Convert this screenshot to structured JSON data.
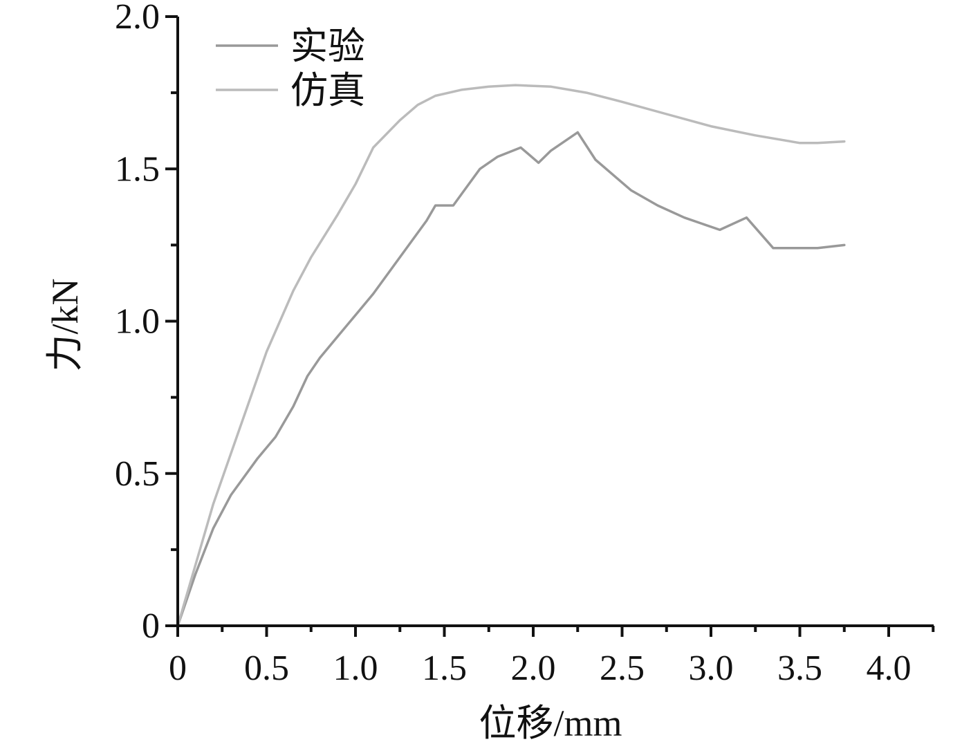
{
  "chart_data": {
    "type": "line",
    "xlabel": "位移/mm",
    "ylabel": "力/kN",
    "xlim": [
      0,
      4.25
    ],
    "ylim": [
      0,
      2.0
    ],
    "x_ticks": [
      0,
      0.5,
      1.0,
      1.5,
      2.0,
      2.5,
      3.0,
      3.5,
      4.0
    ],
    "x_tick_labels": [
      "0",
      "0.5",
      "1.0",
      "1.5",
      "2.0",
      "2.5",
      "3.0",
      "3.5",
      "4.0"
    ],
    "y_ticks": [
      0,
      0.5,
      1.0,
      1.5,
      2.0
    ],
    "y_tick_labels": [
      "0",
      "0.5",
      "1.0",
      "1.5",
      "2.0"
    ],
    "grid": false,
    "legend": {
      "position": "top-left"
    },
    "series": [
      {
        "name": "实验",
        "color": "#999999",
        "x": [
          0,
          0.1,
          0.2,
          0.3,
          0.45,
          0.55,
          0.65,
          0.73,
          0.8,
          0.9,
          1.0,
          1.1,
          1.2,
          1.3,
          1.4,
          1.45,
          1.55,
          1.6,
          1.7,
          1.8,
          1.93,
          2.03,
          2.1,
          2.25,
          2.35,
          2.45,
          2.55,
          2.7,
          2.85,
          3.05,
          3.2,
          3.35,
          3.5,
          3.6,
          3.75
        ],
        "y": [
          0,
          0.17,
          0.32,
          0.43,
          0.55,
          0.62,
          0.72,
          0.82,
          0.88,
          0.95,
          1.02,
          1.09,
          1.17,
          1.25,
          1.33,
          1.38,
          1.38,
          1.42,
          1.5,
          1.54,
          1.57,
          1.52,
          1.56,
          1.62,
          1.53,
          1.48,
          1.43,
          1.38,
          1.34,
          1.3,
          1.34,
          1.24,
          1.24,
          1.24,
          1.25
        ]
      },
      {
        "name": "仿真",
        "color": "#bbbbbb",
        "x": [
          0,
          0.1,
          0.2,
          0.35,
          0.5,
          0.65,
          0.75,
          0.9,
          1.0,
          1.1,
          1.25,
          1.35,
          1.45,
          1.6,
          1.75,
          1.9,
          2.1,
          2.3,
          2.5,
          2.75,
          3.0,
          3.25,
          3.5,
          3.6,
          3.75
        ],
        "y": [
          0,
          0.2,
          0.4,
          0.65,
          0.9,
          1.1,
          1.21,
          1.35,
          1.45,
          1.57,
          1.66,
          1.71,
          1.74,
          1.76,
          1.77,
          1.775,
          1.77,
          1.75,
          1.72,
          1.68,
          1.64,
          1.61,
          1.585,
          1.585,
          1.59
        ]
      }
    ]
  }
}
